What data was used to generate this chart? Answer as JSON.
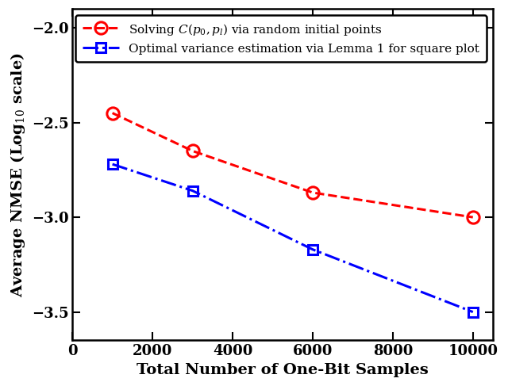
{
  "red_x": [
    1000,
    3000,
    6000,
    10000
  ],
  "red_y": [
    -2.45,
    -2.65,
    -2.87,
    -3.0
  ],
  "blue_x": [
    1000,
    3000,
    6000,
    10000
  ],
  "blue_y": [
    -2.72,
    -2.86,
    -3.17,
    -3.5
  ],
  "xlabel": "Total Number of One-Bit Samples",
  "ylabel": "Average NMSE (Log$_{10}$ scale)",
  "xlim": [
    0,
    10500
  ],
  "ylim": [
    -3.65,
    -1.9
  ],
  "xticks": [
    0,
    2000,
    4000,
    6000,
    8000,
    10000
  ],
  "yticks": [
    -3.5,
    -3.0,
    -2.5,
    -2.0
  ],
  "red_label": "Solving $C(p_0,p_l)$ via random initial points",
  "blue_label": "Optimal variance estimation via Lemma 1 for square plot",
  "red_color": "#FF0000",
  "blue_color": "#0000FF",
  "bg_color": "#FFFFFF",
  "fig_width": 6.4,
  "fig_height": 4.87,
  "dpi": 100
}
